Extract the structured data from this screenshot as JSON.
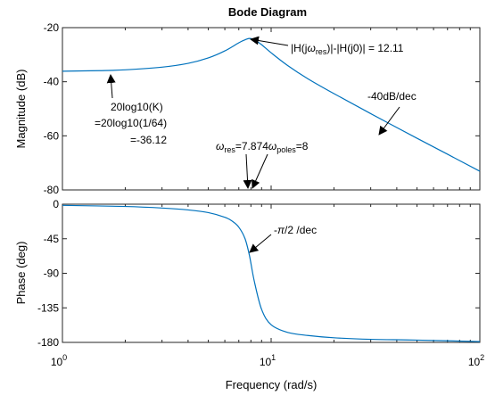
{
  "chart_data": [
    {
      "type": "line",
      "title": "Bode Diagram",
      "ylabel": "Magnitude (dB)",
      "xscale": "log",
      "xlim": [
        1,
        100
      ],
      "ylim": [
        -80,
        -20
      ],
      "yticks": [
        -20,
        -40,
        -60,
        -80
      ],
      "ytick_labels": [
        "-20",
        "-40",
        "-60",
        "-80"
      ],
      "grid": false,
      "series": [
        {
          "color": "#0072bd",
          "x": [
            1,
            1.5,
            2,
            3,
            4,
            5,
            6,
            7,
            7.5,
            7.874,
            8.3,
            9,
            10,
            12,
            15,
            20,
            30,
            50,
            70,
            100
          ],
          "y": [
            -36.1,
            -35.9,
            -35.6,
            -34.6,
            -33.2,
            -31.2,
            -28.6,
            -25.6,
            -24.5,
            -24.0,
            -24.4,
            -26.3,
            -29.3,
            -34.0,
            -38.9,
            -44.4,
            -51.8,
            -60.9,
            -66.8,
            -73.1
          ]
        }
      ],
      "annotations": {
        "peak_pre": "|H(j",
        "omega": "ω",
        "res_sub": "res",
        "peak_post": ")|-|H(j0)| = 12.11",
        "k_line1": "20log10(K)",
        "k_line2": "=20log10(1/64)",
        "k_line3": "=-36.12",
        "slope": "-40dB/dec",
        "wres_eq": "=7.874",
        "poles_sub": "poles",
        "wpoles_eq": "=8"
      }
    },
    {
      "type": "line",
      "xlabel": "Frequency  (rad/s)",
      "ylabel": "Phase (deg)",
      "xscale": "log",
      "xlim": [
        1,
        100
      ],
      "ylim": [
        -180,
        0
      ],
      "yticks": [
        0,
        -45,
        -90,
        -135,
        -180
      ],
      "ytick_labels": [
        "0",
        "-45",
        "-90",
        "-135",
        "-180"
      ],
      "xticks": [
        1,
        10,
        100
      ],
      "xtick_base": "10",
      "xtick_exps": [
        "0",
        "1",
        "2"
      ],
      "grid": false,
      "series": [
        {
          "color": "#0072bd",
          "x": [
            1,
            2,
            3,
            4,
            5,
            6,
            6.5,
            7,
            7.5,
            7.874,
            8.3,
            9,
            10,
            12,
            15,
            20,
            30,
            50,
            100
          ],
          "y": [
            -1.5,
            -3,
            -5,
            -7.5,
            -11,
            -17,
            -22,
            -30,
            -45,
            -67,
            -100,
            -137,
            -157,
            -167,
            -171,
            -174,
            -176,
            -177,
            -179
          ]
        }
      ],
      "annotations": {
        "slope_pre": "-",
        "pi": "π",
        "slope_post": "/2 /dec"
      }
    }
  ]
}
